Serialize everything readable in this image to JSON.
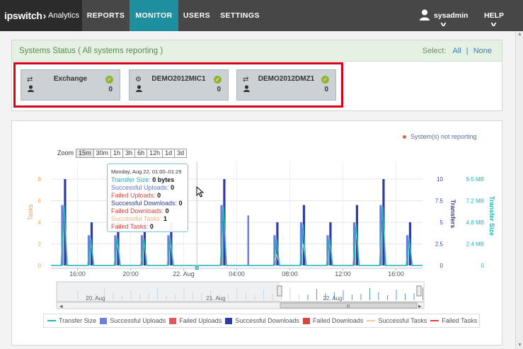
{
  "brand": {
    "name": "ipswitch",
    "product": "Analytics"
  },
  "nav": {
    "reports": "REPORTS",
    "monitor": "MONITOR",
    "users": "USERS",
    "settings": "SETTINGS"
  },
  "user": {
    "name": "sysadmin",
    "help": "HELP"
  },
  "status": {
    "title": "Systems Status ( All systems reporting )",
    "select_label": "Select:",
    "select_all": "All",
    "select_sep": "|",
    "select_none": "None"
  },
  "cards": [
    {
      "name": "Exchange",
      "count": "0"
    },
    {
      "name": "DEMO2012MIC1",
      "count": "0"
    },
    {
      "name": "DEMO2012DMZ1",
      "count": "0"
    }
  ],
  "chart_meta": {
    "not_reporting": "System(s) not reporting"
  },
  "zoom": {
    "label": "Zoom",
    "options": [
      "15m",
      "30m",
      "1h",
      "3h",
      "6h",
      "12h",
      "1d",
      "3d"
    ]
  },
  "tooltip": {
    "header": "Monday, Aug 22, 01:00–01:29",
    "rows": [
      {
        "label": "Transfer Size:",
        "value": "0 bytes"
      },
      {
        "label": "Successful Uploads:",
        "value": "0"
      },
      {
        "label": "Failed Uploads:",
        "value": "0"
      },
      {
        "label": "Successful Downloads:",
        "value": "0"
      },
      {
        "label": "Failed Downloads:",
        "value": "0"
      },
      {
        "label": "Successful Tasks:",
        "value": "1"
      },
      {
        "label": "Failed Tasks:",
        "value": "0"
      }
    ]
  },
  "navigator_labels": [
    "20. Aug",
    "21. Aug",
    "22. Aug"
  ],
  "navigator_thumb": "III",
  "legend": [
    {
      "label": "Transfer Size",
      "color": "#21b5b8",
      "kind": "line"
    },
    {
      "label": "Successful Uploads",
      "color": "#6a7fe0",
      "kind": "box"
    },
    {
      "label": "Failed Uploads",
      "color": "#e05a55",
      "kind": "box"
    },
    {
      "label": "Successful Downloads",
      "color": "#2e3aa5",
      "kind": "box"
    },
    {
      "label": "Failed Downloads",
      "color": "#d4463f",
      "kind": "box"
    },
    {
      "label": "Successful Tasks",
      "color": "#f6c89b",
      "kind": "line"
    },
    {
      "label": "Failed Tasks",
      "color": "#dd4040",
      "kind": "line"
    }
  ],
  "chart_data": {
    "type": "bar",
    "x_ticks": [
      "16:00",
      "20:00",
      "22. Aug",
      "04:00",
      "08:00",
      "12:00",
      "16:00"
    ],
    "x_tick_hours": [
      16,
      20,
      24,
      28,
      32,
      36,
      40
    ],
    "x_range_hours": [
      14,
      42
    ],
    "axes": {
      "tasks": {
        "label": "Tasks",
        "range": [
          0,
          8
        ],
        "ticks": [
          "0",
          "2",
          "4",
          "6",
          "8"
        ]
      },
      "transfers": {
        "label": "Transfers",
        "range": [
          0,
          10
        ],
        "ticks": [
          "0",
          "2.5",
          "5",
          "7.5",
          "10"
        ]
      },
      "transfer_size": {
        "label": "Transfer Size",
        "range_mb": [
          0,
          9.5
        ],
        "ticks": [
          "0",
          "2.4 MB",
          "4.8 MB",
          "7.2 MB",
          "9.5 MB"
        ]
      }
    },
    "bursts_hour": [
      15,
      17,
      19,
      21,
      23,
      27,
      31,
      33,
      35,
      37,
      39,
      41
    ],
    "successful_downloads": [
      10,
      5,
      5,
      5,
      5,
      10,
      5,
      7,
      5,
      7,
      10,
      5
    ],
    "successful_uploads": [
      7,
      3.5,
      3.5,
      3.5,
      3.5,
      7,
      3.5,
      5,
      3.5,
      5,
      7,
      3.5
    ],
    "transfer_size_mb": [
      6.5,
      3,
      3,
      3,
      3,
      6.5,
      3,
      4.5,
      3,
      4.5,
      6.5,
      3
    ],
    "successful_tasks": [
      5,
      2,
      2,
      2,
      2,
      5,
      1,
      2,
      2,
      3,
      5,
      2
    ],
    "single_upload_bar": {
      "hour": 28,
      "value": 5.8
    },
    "legend_placement": "bottom",
    "grid": true
  }
}
